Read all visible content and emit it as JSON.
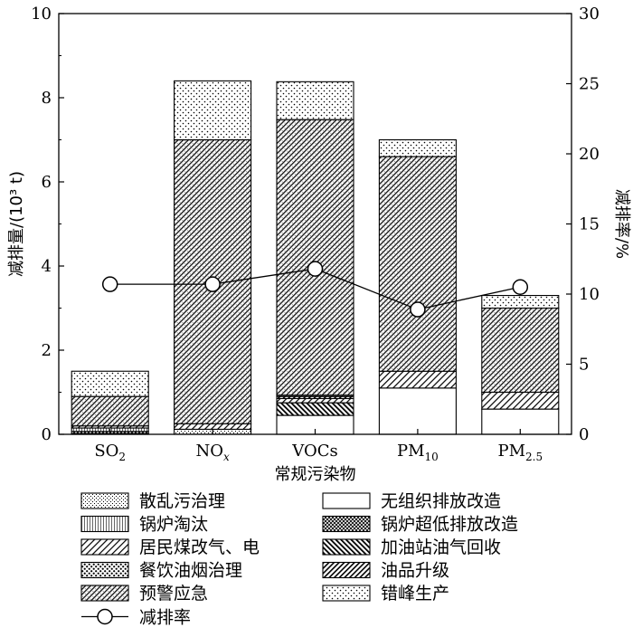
{
  "chart_data": {
    "type": "bar",
    "stacked": true,
    "xlabel": "常规污染物",
    "ylabel": "减排量/(10³ t)",
    "ylabel_right": "减排率/%",
    "ylim": [
      0,
      10
    ],
    "ylim_right": [
      0,
      30
    ],
    "yticks": [
      0,
      2,
      4,
      6,
      8,
      10
    ],
    "yticks_right": [
      0,
      5,
      10,
      15,
      20,
      25,
      30
    ],
    "categories": [
      {
        "base": "SO",
        "sub": "2",
        "italic": false
      },
      {
        "base": "NO",
        "sub": "x",
        "italic": true
      },
      {
        "base": "VOCs",
        "sub": "",
        "italic": false
      },
      {
        "base": "PM",
        "sub": "10",
        "italic": false
      },
      {
        "base": "PM",
        "sub": "2.5",
        "italic": false
      }
    ],
    "series": [
      {
        "name": "无组织排放改造",
        "pattern": "blank",
        "values": [
          0.0,
          0.0,
          0.45,
          1.1,
          0.6
        ]
      },
      {
        "name": "散乱污治理",
        "pattern": "fine-dots",
        "values": [
          0.02,
          0.12,
          0.0,
          0.0,
          0.0
        ]
      },
      {
        "name": "锅炉超低排放改造",
        "pattern": "cross-hatch",
        "values": [
          0.05,
          0.0,
          0.0,
          0.0,
          0.0
        ]
      },
      {
        "name": "锅炉淘汰",
        "pattern": "vertical-fine",
        "values": [
          0.08,
          0.0,
          0.0,
          0.0,
          0.0
        ]
      },
      {
        "name": "加油站油气回收",
        "pattern": "dense-diag",
        "values": [
          0.0,
          0.0,
          0.3,
          0.0,
          0.0
        ]
      },
      {
        "name": "居民煤改气、电",
        "pattern": "sparse-diag",
        "values": [
          0.05,
          0.13,
          0.1,
          0.4,
          0.4
        ]
      },
      {
        "name": "油品升级",
        "pattern": "diag-medium",
        "values": [
          0.0,
          0.0,
          0.05,
          0.0,
          0.0
        ]
      },
      {
        "name": "餐饮油烟治理",
        "pattern": "coarse-dots",
        "values": [
          0.0,
          0.0,
          0.03,
          0.0,
          0.0
        ]
      },
      {
        "name": "预警应急",
        "pattern": "mixed-diag",
        "values": [
          0.7,
          6.75,
          6.55,
          5.1,
          2.0
        ]
      },
      {
        "name": "错峰生产",
        "pattern": "dots",
        "values": [
          0.6,
          1.4,
          0.9,
          0.4,
          0.3
        ]
      }
    ],
    "line_series": {
      "name": "减排率",
      "axis": "right",
      "values": [
        10.7,
        10.7,
        11.8,
        8.9,
        10.5
      ]
    }
  }
}
